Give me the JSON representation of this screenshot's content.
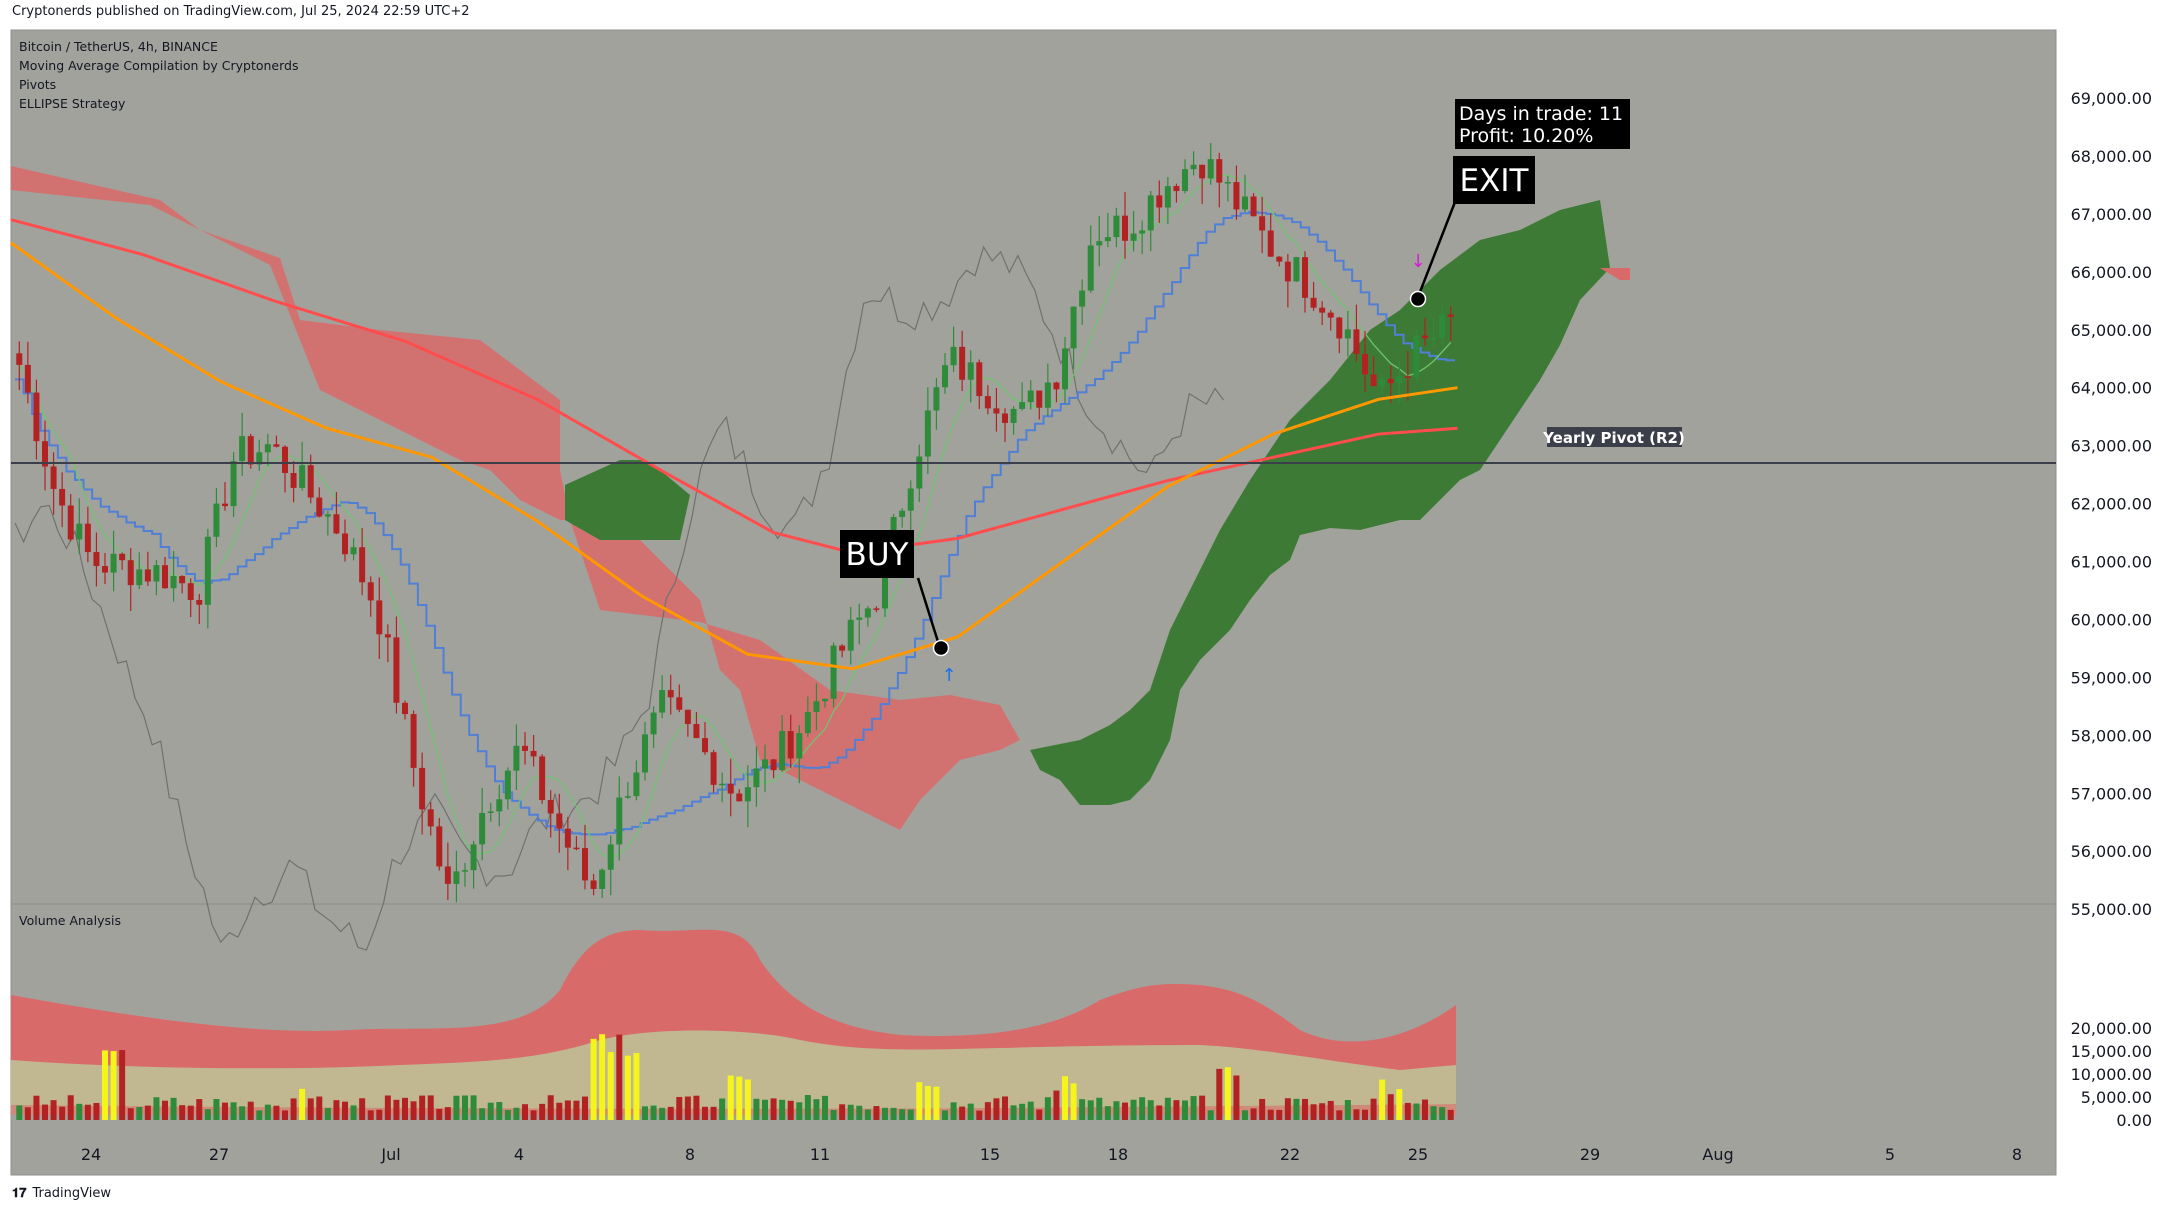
{
  "header": {
    "published": "Cryptonerds published on TradingView.com, Jul 25, 2024 22:59 UTC+2"
  },
  "legend": {
    "symbol": "Bitcoin / TetherUS, 4h, BINANCE",
    "indicators": [
      "Moving Average Compilation by Cryptonerds",
      "Pivots",
      "ELLIPSE Strategy"
    ],
    "volume_pane": "Volume Analysis"
  },
  "footer": {
    "brand": "TradingView"
  },
  "colors": {
    "pane_bg": "#a2a29d",
    "bull": "#2e8b3a",
    "bear": "#b22222",
    "yellow": "#f5f51c",
    "ma_orange": "#ff9800",
    "ma_red": "#ff4c4c",
    "kijun": "#4f7fd6",
    "tenkan": "#6fc46f",
    "lagging": "#707070",
    "cloud_red": "#d96a6a",
    "cloud_green": "#3d7a35"
  },
  "annotations": {
    "buy": "BUY",
    "exit": "EXIT",
    "trade_days": "Days in trade: 11",
    "trade_profit": "Profit: 10.20%",
    "pivot_label": "Yearly Pivot (R2)"
  },
  "chart_data": [
    {
      "type": "candlestick",
      "title": "Bitcoin / TetherUS, 4h, BINANCE",
      "x_ticks": [
        "24",
        "27",
        "Jul",
        "4",
        "8",
        "11",
        "15",
        "18",
        "22",
        "25",
        "29",
        "Aug",
        "5",
        "8"
      ],
      "y_tick_labels": [
        "55,000.00",
        "56,000.00",
        "57,000.00",
        "58,000.00",
        "59,000.00",
        "60,000.00",
        "61,000.00",
        "62,000.00",
        "63,000.00",
        "64,000.00",
        "65,000.00",
        "66,000.00",
        "67,000.00",
        "68,000.00",
        "69,000.00"
      ],
      "ylim": [
        54800,
        69500
      ],
      "pivot_level": 62700,
      "close_path": [
        [
          24,
          64400
        ],
        [
          25,
          62200
        ],
        [
          26,
          61000
        ],
        [
          28,
          60800
        ],
        [
          29,
          60500
        ],
        [
          30,
          62800
        ],
        [
          31,
          63000
        ],
        [
          33,
          61500
        ],
        [
          34,
          60200
        ],
        [
          35,
          57500
        ],
        [
          36,
          55200
        ],
        [
          37,
          56800
        ],
        [
          38,
          57800
        ],
        [
          39,
          56500
        ],
        [
          40,
          55300
        ],
        [
          41,
          57200
        ],
        [
          42,
          58500
        ],
        [
          43,
          57800
        ],
        [
          44,
          57000
        ],
        [
          45,
          57500
        ],
        [
          46,
          58300
        ],
        [
          47,
          59500
        ],
        [
          48,
          60500
        ],
        [
          49,
          62800
        ],
        [
          50,
          64500
        ],
        [
          51,
          64000
        ],
        [
          52,
          63500
        ],
        [
          53,
          64300
        ],
        [
          54,
          66700
        ],
        [
          55,
          66800
        ],
        [
          56,
          67500
        ],
        [
          57,
          68000
        ],
        [
          58,
          67200
        ],
        [
          59,
          66400
        ],
        [
          60,
          65800
        ],
        [
          61,
          65100
        ],
        [
          62,
          63800
        ],
        [
          63,
          64600
        ],
        [
          64,
          65100
        ]
      ],
      "series": [
        {
          "name": "MA orange",
          "values": [
            [
              0,
              66500
            ],
            [
              4,
              65200
            ],
            [
              8,
              64100
            ],
            [
              12,
              63300
            ],
            [
              16,
              62800
            ],
            [
              20,
              61700
            ],
            [
              24,
              60400
            ],
            [
              28,
              59400
            ],
            [
              32,
              59150
            ],
            [
              36,
              59700
            ],
            [
              40,
              61000
            ],
            [
              44,
              62300
            ],
            [
              48,
              63200
            ],
            [
              52,
              63800
            ],
            [
              55,
              64000
            ]
          ]
        },
        {
          "name": "MA red",
          "values": [
            [
              0,
              66900
            ],
            [
              5,
              66300
            ],
            [
              10,
              65500
            ],
            [
              15,
              64800
            ],
            [
              20,
              63800
            ],
            [
              25,
              62500
            ],
            [
              29,
              61500
            ],
            [
              32,
              61150
            ],
            [
              36,
              61400
            ],
            [
              40,
              61900
            ],
            [
              44,
              62400
            ],
            [
              48,
              62800
            ],
            [
              52,
              63200
            ],
            [
              55,
              63300
            ]
          ]
        }
      ],
      "trade": {
        "entry_x": 32.2,
        "entry_price": 59200,
        "exit_x": 54,
        "exit_price": 65300,
        "days": 11,
        "profit_pct": 10.2
      }
    },
    {
      "type": "bar",
      "title": "Volume Analysis",
      "y_tick_labels": [
        "0.00",
        "5,000.00",
        "10,000.00",
        "15,000.00",
        "20,000.00"
      ],
      "ylim": [
        0,
        21500
      ],
      "peaks": [
        [
          3,
          17000
        ],
        [
          10,
          7000
        ],
        [
          21,
          19000
        ],
        [
          22,
          21000
        ],
        [
          26,
          11000
        ],
        [
          33,
          12000
        ],
        [
          38,
          9500
        ],
        [
          44,
          11500
        ],
        [
          50,
          9000
        ],
        [
          54,
          11000
        ]
      ]
    }
  ]
}
